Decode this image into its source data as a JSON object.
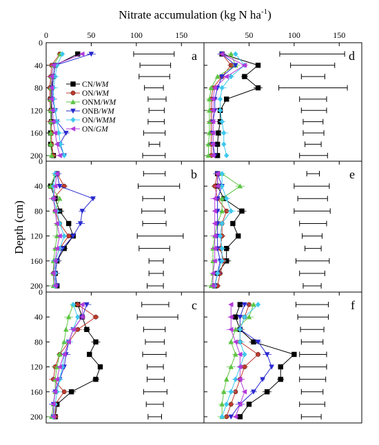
{
  "figure": {
    "x_axis_title": "Nitrate accumulation (kg N ha",
    "x_axis_title_sup": "-1",
    "x_axis_title_end": ")",
    "y_axis_title": "Depth (cm)"
  },
  "legend": [
    {
      "prefix": "CN/",
      "emph": "WM",
      "color": "#000000",
      "marker": "square"
    },
    {
      "prefix": "ON/",
      "emph": "WM",
      "color": "#c0392b",
      "marker": "circle"
    },
    {
      "prefix": "ONM/",
      "emph": "WM",
      "color": "#5ec444",
      "marker": "triangle-up"
    },
    {
      "prefix": "ONB/",
      "emph": "WM",
      "color": "#2a2ad0",
      "marker": "triangle-down"
    },
    {
      "prefix": "ON/",
      "emph": "WMM",
      "color": "#3ec8ee",
      "marker": "diamond"
    },
    {
      "prefix": "ON/",
      "emph": "GM",
      "color": "#b33ad8",
      "marker": "triangle-left"
    }
  ],
  "chart_data": [
    {
      "type": "line",
      "panel": "a",
      "xlim": [
        0,
        175
      ],
      "ylim": [
        0,
        210
      ],
      "x_ticks": [
        0,
        50,
        100,
        150
      ],
      "y_ticks": [
        0,
        40,
        80,
        120,
        160,
        200
      ],
      "depths": [
        20,
        40,
        60,
        80,
        100,
        120,
        140,
        160,
        180,
        200
      ],
      "series": [
        {
          "name": "CN/WM",
          "values": [
            35,
            10,
            8,
            6,
            5,
            6,
            6,
            5,
            5,
            8
          ]
        },
        {
          "name": "ON/WM",
          "values": [
            15,
            6,
            5,
            4,
            4,
            5,
            5,
            6,
            6,
            8
          ]
        },
        {
          "name": "ONM/WM",
          "values": [
            16,
            8,
            6,
            5,
            5,
            5,
            5,
            5,
            5,
            6
          ]
        },
        {
          "name": "ONB/WM",
          "values": [
            50,
            10,
            8,
            7,
            7,
            10,
            12,
            22,
            15,
            20
          ]
        },
        {
          "name": "ON/WMM",
          "values": [
            18,
            12,
            10,
            8,
            8,
            10,
            12,
            14,
            16,
            20
          ]
        },
        {
          "name": "ON/GM",
          "values": [
            40,
            8,
            6,
            6,
            6,
            7,
            8,
            10,
            12,
            15
          ]
        }
      ],
      "lsd": [
        [
          97,
          142
        ],
        [
          104,
          138
        ],
        [
          103,
          137
        ],
        [
          109,
          130
        ],
        [
          113,
          133
        ],
        [
          114,
          131
        ],
        [
          113,
          131
        ],
        [
          108,
          132
        ],
        [
          114,
          126
        ],
        [
          107,
          132
        ]
      ]
    },
    {
      "type": "line",
      "panel": "d",
      "xlim": [
        0,
        175
      ],
      "ylim": [
        0,
        210
      ],
      "x_ticks": [
        50,
        100,
        150
      ],
      "y_ticks": [
        0,
        40,
        80,
        120,
        160,
        200
      ],
      "depths": [
        20,
        40,
        60,
        80,
        100,
        120,
        140,
        160,
        180,
        200
      ],
      "series": [
        {
          "name": "CN/WM",
          "values": [
            20,
            60,
            45,
            60,
            25,
            18,
            18,
            16,
            15,
            15
          ]
        },
        {
          "name": "ON/WM",
          "values": [
            20,
            30,
            20,
            10,
            8,
            8,
            8,
            8,
            8,
            8
          ]
        },
        {
          "name": "ONM/WM",
          "values": [
            30,
            35,
            15,
            8,
            6,
            6,
            6,
            6,
            5,
            5
          ]
        },
        {
          "name": "ONB/WM",
          "values": [
            20,
            35,
            20,
            15,
            12,
            12,
            10,
            10,
            10,
            12
          ]
        },
        {
          "name": "ON/WMM",
          "values": [
            35,
            45,
            30,
            20,
            18,
            18,
            20,
            22,
            22,
            25
          ]
        },
        {
          "name": "ON/GM",
          "values": [
            20,
            45,
            25,
            12,
            10,
            10,
            10,
            10,
            10,
            10
          ]
        }
      ],
      "lsd": [
        [
          84,
          156
        ],
        [
          96,
          145
        ],
        [
          108,
          134
        ],
        [
          83,
          159
        ],
        [
          106,
          136
        ],
        [
          108,
          136
        ],
        [
          110,
          132
        ],
        [
          110,
          133
        ],
        [
          112,
          130
        ],
        [
          106,
          137
        ]
      ]
    },
    {
      "type": "line",
      "panel": "b",
      "xlim": [
        0,
        175
      ],
      "ylim": [
        0,
        210
      ],
      "x_ticks": [
        0,
        50,
        100,
        150
      ],
      "y_ticks": [
        0,
        40,
        80,
        120,
        160,
        200
      ],
      "depths": [
        20,
        40,
        60,
        80,
        100,
        120,
        140,
        160,
        180,
        200
      ],
      "series": [
        {
          "name": "CN/WM",
          "values": [
            12,
            5,
            10,
            15,
            25,
            30,
            20,
            12,
            10,
            12
          ]
        },
        {
          "name": "ON/WM",
          "values": [
            12,
            20,
            8,
            10,
            15,
            25,
            15,
            10,
            8,
            10
          ]
        },
        {
          "name": "ONM/WM",
          "values": [
            10,
            5,
            15,
            10,
            12,
            12,
            10,
            8,
            8,
            8
          ]
        },
        {
          "name": "ONB/WM",
          "values": [
            12,
            15,
            52,
            40,
            38,
            30,
            18,
            12,
            10,
            12
          ]
        },
        {
          "name": "ON/WMM",
          "values": [
            10,
            8,
            8,
            12,
            15,
            20,
            15,
            10,
            10,
            10
          ]
        },
        {
          "name": "ON/GM",
          "values": [
            12,
            10,
            8,
            10,
            12,
            15,
            12,
            10,
            8,
            10
          ]
        }
      ],
      "lsd": [
        [
          108,
          132
        ],
        [
          102,
          148
        ],
        [
          107,
          131
        ],
        [
          106,
          132
        ],
        [
          107,
          133
        ],
        [
          101,
          152
        ],
        [
          103,
          137
        ],
        [
          114,
          130
        ],
        [
          114,
          130
        ],
        [
          112,
          130
        ]
      ]
    },
    {
      "type": "line",
      "panel": "e",
      "xlim": [
        0,
        175
      ],
      "ylim": [
        0,
        210
      ],
      "x_ticks": [
        50,
        100,
        150
      ],
      "y_ticks": [
        0,
        40,
        80,
        120,
        160,
        200
      ],
      "depths": [
        20,
        40,
        60,
        80,
        100,
        120,
        140,
        160,
        180,
        200
      ],
      "series": [
        {
          "name": "CN/WM",
          "values": [
            15,
            15,
            22,
            42,
            32,
            38,
            25,
            25,
            15,
            12
          ]
        },
        {
          "name": "ON/WM",
          "values": [
            15,
            12,
            15,
            25,
            20,
            20,
            18,
            22,
            18,
            15
          ]
        },
        {
          "name": "ONM/WM",
          "values": [
            20,
            40,
            20,
            20,
            15,
            12,
            10,
            10,
            10,
            8
          ]
        },
        {
          "name": "ONB/WM",
          "values": [
            15,
            20,
            15,
            15,
            15,
            15,
            15,
            18,
            15,
            12
          ]
        },
        {
          "name": "ON/WMM",
          "values": [
            20,
            20,
            25,
            30,
            20,
            18,
            20,
            20,
            15,
            12
          ]
        },
        {
          "name": "ON/GM",
          "values": [
            15,
            15,
            12,
            12,
            12,
            12,
            12,
            12,
            10,
            10
          ]
        }
      ],
      "lsd": [
        [
          114,
          128
        ],
        [
          100,
          139
        ],
        [
          104,
          137
        ],
        [
          100,
          140
        ],
        [
          106,
          136
        ],
        [
          109,
          131
        ],
        [
          112,
          130
        ],
        [
          102,
          139
        ],
        [
          106,
          134
        ],
        [
          110,
          130
        ]
      ]
    },
    {
      "type": "line",
      "panel": "c",
      "xlim": [
        0,
        175
      ],
      "ylim": [
        0,
        210
      ],
      "x_ticks": [
        0,
        50,
        100,
        150
      ],
      "y_ticks": [
        0,
        40,
        80,
        120,
        160,
        200
      ],
      "depths": [
        20,
        40,
        60,
        80,
        100,
        120,
        140,
        160,
        180,
        200
      ],
      "series": [
        {
          "name": "CN/WM",
          "values": [
            35,
            40,
            45,
            55,
            48,
            60,
            55,
            28,
            12,
            10
          ]
        },
        {
          "name": "ON/WM",
          "values": [
            35,
            55,
            35,
            25,
            15,
            10,
            8,
            20,
            10,
            10
          ]
        },
        {
          "name": "ONM/WM",
          "values": [
            30,
            25,
            22,
            20,
            15,
            12,
            10,
            10,
            8,
            6
          ]
        },
        {
          "name": "ONB/WM",
          "values": [
            45,
            40,
            30,
            25,
            22,
            20,
            15,
            10,
            8,
            8
          ]
        },
        {
          "name": "ON/WMM",
          "values": [
            30,
            35,
            30,
            25,
            20,
            18,
            15,
            12,
            10,
            8
          ]
        },
        {
          "name": "ON/GM",
          "values": [
            40,
            40,
            30,
            25,
            20,
            15,
            12,
            10,
            8,
            8
          ]
        }
      ],
      "lsd": [
        [
          106,
          136
        ],
        [
          101,
          146
        ],
        [
          108,
          132
        ],
        [
          110,
          131
        ],
        [
          107,
          133
        ],
        [
          112,
          130
        ],
        [
          112,
          131
        ],
        [
          108,
          134
        ],
        [
          111,
          130
        ],
        [
          113,
          128
        ]
      ]
    },
    {
      "type": "line",
      "panel": "f",
      "xlim": [
        0,
        175
      ],
      "ylim": [
        0,
        210
      ],
      "x_ticks": [
        50,
        100,
        150
      ],
      "y_ticks": [
        0,
        40,
        80,
        120,
        160,
        200
      ],
      "depths": [
        20,
        40,
        60,
        80,
        100,
        120,
        140,
        160,
        180,
        200
      ],
      "series": [
        {
          "name": "CN/WM",
          "values": [
            40,
            35,
            40,
            55,
            100,
            85,
            85,
            70,
            50,
            40
          ]
        },
        {
          "name": "ON/WM",
          "values": [
            50,
            45,
            40,
            40,
            60,
            45,
            40,
            35,
            30,
            25
          ]
        },
        {
          "name": "ONM/WM",
          "values": [
            55,
            50,
            35,
            30,
            35,
            30,
            25,
            22,
            20,
            20
          ]
        },
        {
          "name": "ONB/WM",
          "values": [
            45,
            40,
            40,
            60,
            70,
            75,
            65,
            55,
            40,
            30
          ]
        },
        {
          "name": "ON/WMM",
          "values": [
            60,
            45,
            40,
            40,
            45,
            40,
            35,
            30,
            25,
            20
          ]
        },
        {
          "name": "ON/GM",
          "values": [
            30,
            30,
            30,
            35,
            40,
            40,
            40,
            45,
            40,
            35
          ]
        }
      ],
      "lsd": [
        [
          102,
          138
        ],
        [
          104,
          138
        ],
        [
          107,
          133
        ],
        [
          108,
          132
        ],
        [
          106,
          136
        ],
        [
          106,
          136
        ],
        [
          106,
          135
        ],
        [
          108,
          132
        ],
        [
          106,
          134
        ],
        [
          108,
          130
        ]
      ]
    }
  ]
}
